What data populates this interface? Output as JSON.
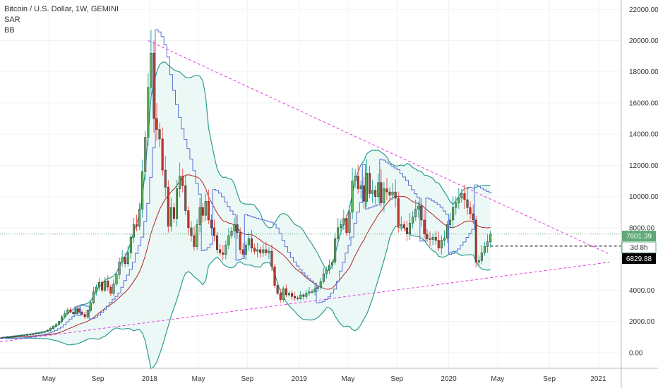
{
  "header": {
    "title": "Bitcoin / U.S. Dollar, 1W, GEMINI",
    "indicators": [
      "SAR",
      "BB"
    ]
  },
  "price_badges": {
    "last_price": "7601.39",
    "countdown": "3d 8h",
    "marker_price": "6829.88"
  },
  "colors": {
    "up": "#26a69a",
    "down": "#ef5350",
    "up_body": "#5cb85c",
    "down_body": "#c0392b",
    "bb_band": "#2e9c8e",
    "bb_basis": "#b22222",
    "bb_fill": "#e6f6f4",
    "sar": "#5b6fd6",
    "trendline": "#e040e0",
    "last_price_badge": "#5fa878",
    "marker_badge": "#000000"
  },
  "chart_data": {
    "type": "candlestick",
    "y_axis": {
      "ticks": [
        "22000.00",
        "20000.00",
        "18000.00",
        "16000.00",
        "14000.00",
        "12000.00",
        "10000.00",
        "8000.00",
        "6000.00",
        "4000.00",
        "2000.00",
        "0.00"
      ],
      "ylim": [
        -1000,
        22600
      ]
    },
    "x_axis": {
      "ticks": [
        "May",
        "Sep",
        "2018",
        "May",
        "Sep",
        "2019",
        "May",
        "Sep",
        "2020",
        "May",
        "Sep",
        "2021"
      ],
      "tick_weeks": [
        17,
        34,
        52,
        69,
        86,
        104,
        121,
        138,
        156,
        173,
        191,
        208
      ],
      "range_weeks": [
        0,
        216
      ]
    },
    "close": [
      960,
      980,
      1000,
      1020,
      1040,
      1060,
      1080,
      1100,
      1120,
      1150,
      1180,
      1200,
      1230,
      1260,
      1300,
      1350,
      1430,
      1550,
      1700,
      1800,
      2000,
      2300,
      2500,
      2750,
      2600,
      2500,
      2800,
      2600,
      2450,
      2300,
      2700,
      3200,
      3900,
      4200,
      4500,
      4000,
      4600,
      4200,
      3800,
      4400,
      5000,
      5800,
      6100,
      5700,
      6400,
      7400,
      8200,
      8100,
      9200,
      11600,
      13800,
      17000,
      19200,
      15000,
      14300,
      13700,
      11700,
      10600,
      8100,
      9300,
      8600,
      10500,
      11300,
      10700,
      9100,
      8000,
      7500,
      6800,
      8200,
      9300,
      8800,
      9700,
      8500,
      8000,
      7500,
      6600,
      6400,
      6300,
      6900,
      7500,
      7800,
      8200,
      7700,
      6600,
      6300,
      6900,
      7300,
      6700,
      6500,
      6600,
      6400,
      6600,
      6400,
      6500,
      5500,
      4300,
      3800,
      3400,
      4100,
      3700,
      3800,
      3600,
      3500,
      3450,
      3700,
      3600,
      3800,
      3900,
      3900,
      4100,
      4200,
      4550,
      5050,
      5300,
      5600,
      5800,
      7300,
      8000,
      8200,
      8600,
      7700,
      9000,
      11000,
      11300,
      10500,
      10700,
      9700,
      11500,
      10200,
      10400,
      10000,
      10900,
      9600,
      10500,
      10300,
      10100,
      10300,
      9900,
      8100,
      8200,
      8000,
      7600,
      8300,
      8700,
      9200,
      9400,
      8500,
      7600,
      7300,
      7250,
      7400,
      7200,
      6700,
      7200,
      7350,
      8200,
      8500,
      9300,
      9600,
      9900,
      10200,
      9800,
      9300,
      8900,
      8500,
      5800,
      5900,
      6400,
      6800,
      7100,
      7601
    ]
  }
}
